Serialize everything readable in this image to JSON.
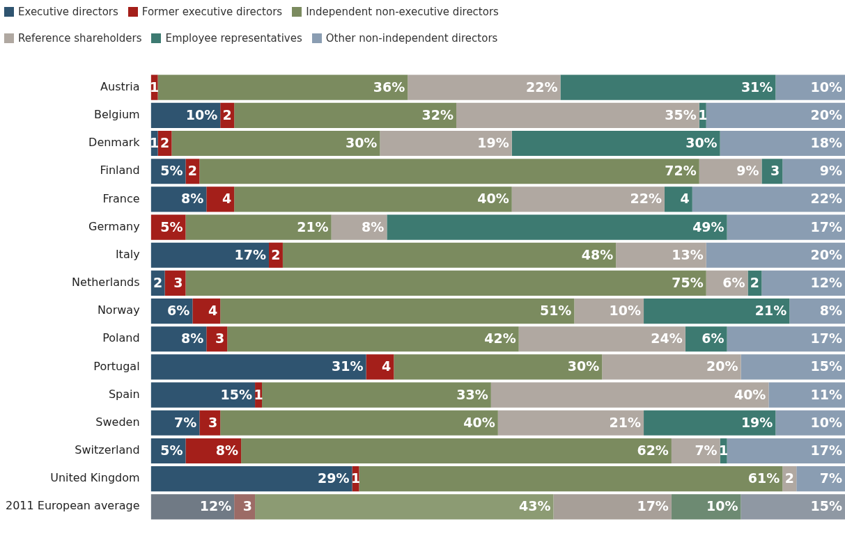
{
  "chart_data": {
    "type": "bar",
    "orientation": "horizontal",
    "stacked": true,
    "legend": "top left",
    "tick_labels": "y",
    "xlim": [
      0,
      100
    ],
    "categories": [
      "Austria",
      "Belgium",
      "Denmark",
      "Finland",
      "France",
      "Germany",
      "Italy",
      "Netherlands",
      "Norway",
      "Poland",
      "Portugal",
      "Spain",
      "Sweden",
      "Switzerland",
      "United Kingdom",
      "2011 European average"
    ],
    "series": [
      {
        "name": "Executive directors",
        "color": "#2f5470",
        "colors": [
          "#2f5470",
          "#2f5470",
          "#2f5470",
          "#2f5470",
          "#2f5470",
          "#2f5470",
          "#2f5470",
          "#2f5470",
          "#2f5470",
          "#2f5470",
          "#2f5470",
          "#2f5470",
          "#2f5470",
          "#2f5470",
          "#2f5470",
          "#707a85"
        ],
        "values": [
          null,
          10,
          1,
          5,
          8,
          null,
          17,
          2,
          6,
          8,
          31,
          15,
          7,
          5,
          29,
          12
        ],
        "value_labels": [
          null,
          "10%",
          "1",
          "5%",
          "8%",
          null,
          "17%",
          "2",
          "6%",
          "8%",
          "31%",
          "15%",
          "7%",
          "5%",
          "29%",
          "12%"
        ]
      },
      {
        "name": "Former executive directors",
        "color": "#a41f1a",
        "colors": [
          "#a41f1a",
          "#a41f1a",
          "#a41f1a",
          "#a41f1a",
          "#a41f1a",
          "#a41f1a",
          "#a41f1a",
          "#a41f1a",
          "#a41f1a",
          "#a41f1a",
          "#a41f1a",
          "#a41f1a",
          "#a41f1a",
          "#a41f1a",
          "#a41f1a",
          "#9c6b66"
        ],
        "values": [
          1,
          2,
          2,
          2,
          4,
          5,
          2,
          3,
          4,
          3,
          4,
          1,
          3,
          8,
          1,
          3
        ],
        "value_labels": [
          "1",
          "2",
          "2",
          "2",
          "4",
          "5%",
          "2",
          "3",
          "4",
          "3",
          "4",
          "1",
          "3",
          "8%",
          "1",
          "3"
        ]
      },
      {
        "name": "Independent non-executive directors",
        "color": "#7b8b5f",
        "colors": [
          "#7b8b5f",
          "#7b8b5f",
          "#7b8b5f",
          "#7b8b5f",
          "#7b8b5f",
          "#7b8b5f",
          "#7b8b5f",
          "#7b8b5f",
          "#7b8b5f",
          "#7b8b5f",
          "#7b8b5f",
          "#7b8b5f",
          "#7b8b5f",
          "#7b8b5f",
          "#7b8b5f",
          "#8c9b73"
        ],
        "values": [
          36,
          32,
          30,
          72,
          40,
          21,
          48,
          75,
          51,
          42,
          30,
          33,
          40,
          62,
          61,
          43
        ],
        "value_labels": [
          "36%",
          "32%",
          "30%",
          "72%",
          "40%",
          "21%",
          "48%",
          "75%",
          "51%",
          "42%",
          "30%",
          "33%",
          "40%",
          "62%",
          "61%",
          "43%"
        ]
      },
      {
        "name": "Reference shareholders",
        "color": "#b0a8a1",
        "colors": [
          "#b0a8a1",
          "#b0a8a1",
          "#b0a8a1",
          "#b0a8a1",
          "#b0a8a1",
          "#b0a8a1",
          "#b0a8a1",
          "#b0a8a1",
          "#b0a8a1",
          "#b0a8a1",
          "#b0a8a1",
          "#b0a8a1",
          "#b0a8a1",
          "#b0a8a1",
          "#b0a8a1",
          "#a79f98"
        ],
        "values": [
          22,
          35,
          19,
          9,
          22,
          8,
          13,
          6,
          10,
          24,
          20,
          40,
          21,
          7,
          2,
          17
        ],
        "value_labels": [
          "22%",
          "35%",
          "19%",
          "9%",
          "22%",
          "8%",
          "13%",
          "6%",
          "10%",
          "24%",
          "20%",
          "40%",
          "21%",
          "7%",
          "2",
          "17%"
        ]
      },
      {
        "name": "Employee representatives",
        "color": "#3d7a71",
        "colors": [
          "#3d7a71",
          "#3d7a71",
          "#3d7a71",
          "#3d7a71",
          "#3d7a71",
          "#3d7a71",
          "#3d7a71",
          "#3d7a71",
          "#3d7a71",
          "#3d7a71",
          "#3d7a71",
          "#3d7a71",
          "#3d7a71",
          "#3d7a71",
          "#3d7a71",
          "#6d8a72"
        ],
        "values": [
          31,
          1,
          30,
          3,
          4,
          49,
          null,
          2,
          21,
          6,
          null,
          null,
          19,
          1,
          null,
          10
        ],
        "value_labels": [
          "31%",
          "1",
          "30%",
          "3",
          "4",
          "49%",
          null,
          "2",
          "21%",
          "6%",
          null,
          null,
          "19%",
          "1",
          null,
          "10%"
        ]
      },
      {
        "name": "Other non-independent directors",
        "color": "#8a9db2",
        "colors": [
          "#8a9db2",
          "#8a9db2",
          "#8a9db2",
          "#8a9db2",
          "#8a9db2",
          "#8a9db2",
          "#8a9db2",
          "#8a9db2",
          "#8a9db2",
          "#8a9db2",
          "#8a9db2",
          "#8a9db2",
          "#8a9db2",
          "#8a9db2",
          "#8a9db2",
          "#8f98a3"
        ],
        "values": [
          10,
          20,
          18,
          9,
          22,
          17,
          20,
          12,
          8,
          17,
          15,
          11,
          10,
          17,
          7,
          15
        ],
        "value_labels": [
          "10%",
          "20%",
          "18%",
          "9%",
          "22%",
          "17%",
          "20%",
          "12%",
          "8%",
          "17%",
          "15%",
          "11%",
          "10%",
          "17%",
          "7%",
          "15%"
        ]
      }
    ]
  }
}
